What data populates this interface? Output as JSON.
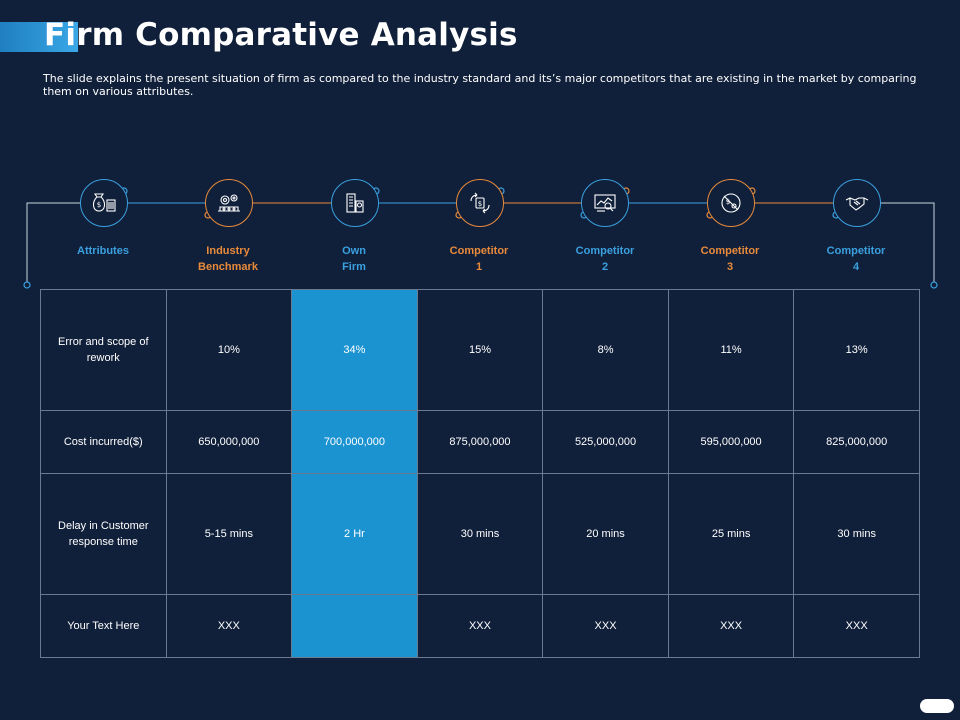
{
  "slide": {
    "title": "Firm Comparative Analysis",
    "subtitle": "The slide explains the present situation of firm as compared to the industry standard and its’s major competitors that are existing in the market by comparing them on various attributes."
  },
  "colors": {
    "background": "#11203a",
    "accent_blue": "#3aa0df",
    "accent_orange": "#e88a3a",
    "highlight_column": "#1b93d1"
  },
  "columns": [
    {
      "label_line1": "Attributes",
      "label_line2": "",
      "icon": "money-bag-icon",
      "accent": "blue"
    },
    {
      "label_line1": "Industry",
      "label_line2": "Benchmark",
      "icon": "factory-gears-icon",
      "accent": "orange"
    },
    {
      "label_line1": "Own",
      "label_line2": "Firm",
      "icon": "buildings-icon",
      "accent": "blue"
    },
    {
      "label_line1": "Competitor",
      "label_line2": "1",
      "icon": "exchange-cycle-icon",
      "accent": "orange"
    },
    {
      "label_line1": "Competitor",
      "label_line2": "2",
      "icon": "analytics-dashboard-icon",
      "accent": "blue"
    },
    {
      "label_line1": "Competitor",
      "label_line2": "3",
      "icon": "no-money-icon",
      "accent": "orange"
    },
    {
      "label_line1": "Competitor",
      "label_line2": "4",
      "icon": "handshake-icon",
      "accent": "blue"
    }
  ],
  "rows": [
    {
      "attribute": "Error and scope of rework",
      "values": [
        "10%",
        "34%",
        "15%",
        "8%",
        "11%",
        "13%"
      ]
    },
    {
      "attribute": "Cost incurred($)",
      "values": [
        "650,000,000",
        "700,000,000",
        "875,000,000",
        "525,000,000",
        "595,000,000",
        "825,000,000"
      ]
    },
    {
      "attribute": "Delay in Customer response time",
      "values": [
        "5-15 mins",
        "2 Hr",
        "30 mins",
        "20 mins",
        "25 mins",
        "30 mins"
      ]
    },
    {
      "attribute": "Your Text Here",
      "values": [
        "XXX",
        "",
        "XXX",
        "XXX",
        "XXX",
        "XXX"
      ]
    }
  ]
}
